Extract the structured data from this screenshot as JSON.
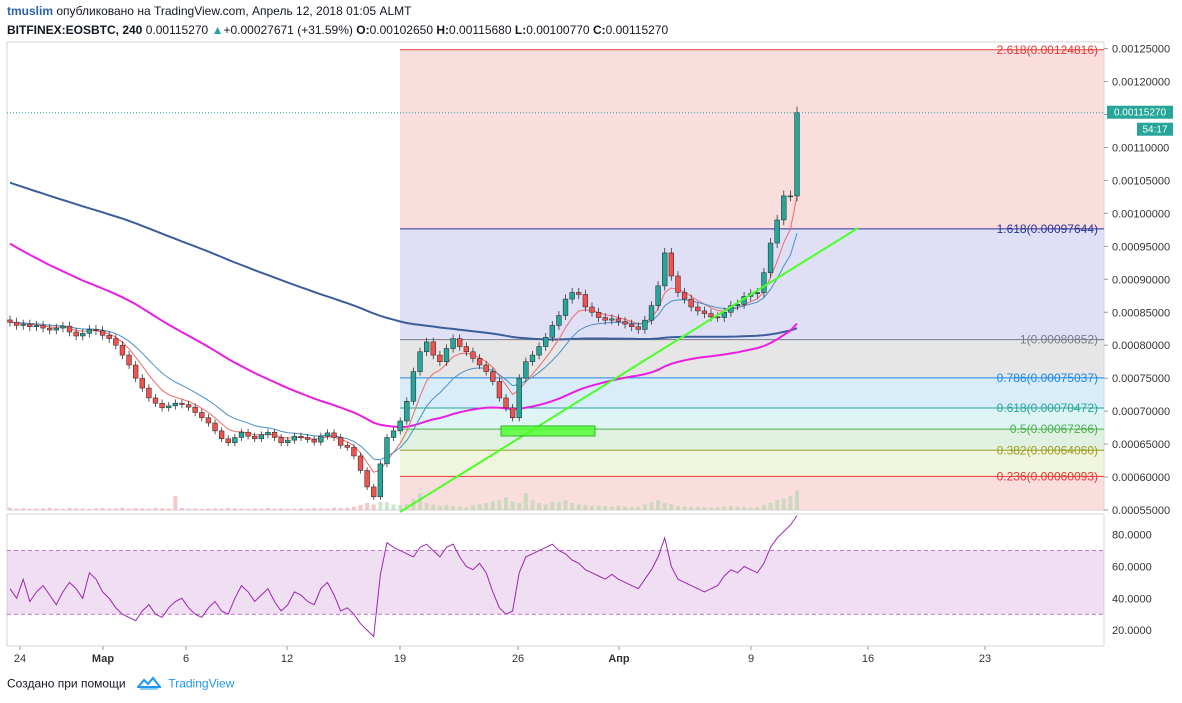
{
  "header": {
    "author": "tmuslim",
    "published": "опубликовано на TradingView.com, Апрель 12, 2018 01:05 ALMT",
    "symbol": "BITFINEX:EOSBTC, 240",
    "last": "0.00115270",
    "change": "+0.00027671 (+31.59%)",
    "o_label": "O:",
    "o_value": "0.00102650",
    "h_label": "H:",
    "h_value": "0.00115680",
    "l_label": "L:",
    "l_value": "0.00100770",
    "c_label": "C:",
    "c_value": "0.00115270"
  },
  "footer": {
    "created_with": "Создано при помощи",
    "brand": "TradingView"
  },
  "colors": {
    "up": "#26a69a",
    "down": "#ef5350",
    "ma200": "#3b5e9b",
    "ma_magenta": "#e91ee3",
    "trend": "#4cff29",
    "rsi": "#9c27b0"
  },
  "chart_data": {
    "type": "candlestick",
    "price_axis": {
      "ticks": [
        "0.00125000",
        "0.00120000",
        "0.00115000",
        "0.00110000",
        "0.00105000",
        "0.00100000",
        "0.00095000",
        "0.00090000",
        "0.00085000",
        "0.00080000",
        "0.00075000",
        "0.00070000",
        "0.00065000",
        "0.00060000",
        "0.00055000"
      ],
      "range": [
        0.00055,
        0.00126
      ],
      "last_price_label": "0.00115270",
      "countdown_label": "54:17"
    },
    "time_axis": {
      "labels": [
        "24",
        "Мар",
        "6",
        "12",
        "19",
        "26",
        "Апр",
        "9",
        "16",
        "23"
      ]
    },
    "fibonacci": [
      {
        "label": "2.618(0.00124816)",
        "value": 0.00124816,
        "color": "#e53935"
      },
      {
        "label": "1.618(0.00097644)",
        "value": 0.00097644,
        "color": "#283593"
      },
      {
        "label": "1(0.00080852)",
        "value": 0.00080852,
        "color": "#787b86"
      },
      {
        "label": "0.786(0.00075037)",
        "value": 0.00075037,
        "color": "#1e88e5"
      },
      {
        "label": "0.618(0.00070472)",
        "value": 0.00070472,
        "color": "#26a69a"
      },
      {
        "label": "0.5(0.00067266)",
        "value": 0.00067266,
        "color": "#4caf50"
      },
      {
        "label": "0.382(0.00064060)",
        "value": 0.0006406,
        "color": "#9e9d24"
      },
      {
        "label": "0.236(0.00060093)",
        "value": 0.00060093,
        "color": "#e53935"
      }
    ],
    "close": [
      0.000835,
      0.00083,
      0.000832,
      0.000828,
      0.00083,
      0.000826,
      0.000823,
      0.000826,
      0.000829,
      0.00082,
      0.000814,
      0.000818,
      0.000824,
      0.000822,
      0.000815,
      0.00081,
      0.0008,
      0.000785,
      0.00077,
      0.00075,
      0.000735,
      0.00072,
      0.000712,
      0.000705,
      0.000708,
      0.000712,
      0.00071,
      0.000706,
      0.000698,
      0.00069,
      0.000682,
      0.00067,
      0.000658,
      0.000652,
      0.00066,
      0.000668,
      0.000662,
      0.000658,
      0.000664,
      0.000668,
      0.00066,
      0.000652,
      0.000656,
      0.000662,
      0.00066,
      0.000657,
      0.000653,
      0.000662,
      0.000667,
      0.00066,
      0.000648,
      0.000645,
      0.000632,
      0.00061,
      0.000585,
      0.00057,
      0.00062,
      0.00066,
      0.00067,
      0.000685,
      0.000715,
      0.00076,
      0.00079,
      0.000805,
      0.000785,
      0.000775,
      0.000795,
      0.00081,
      0.000798,
      0.00079,
      0.00078,
      0.00077,
      0.00076,
      0.000745,
      0.00072,
      0.000705,
      0.00069,
      0.00075,
      0.000775,
      0.000785,
      0.000798,
      0.000812,
      0.00083,
      0.000845,
      0.00087,
      0.00088,
      0.000877,
      0.000858,
      0.00085,
      0.000842,
      0.000838,
      0.00084,
      0.000836,
      0.000832,
      0.000828,
      0.000824,
      0.000838,
      0.00086,
      0.00089,
      0.00094,
      0.000905,
      0.00088,
      0.00087,
      0.000858,
      0.000852,
      0.000848,
      0.000843,
      0.000842,
      0.00085,
      0.00086,
      0.000862,
      0.000874,
      0.000878,
      0.00088,
      0.00091,
      0.000955,
      0.00099,
      0.0010265,
      0.0010265,
      0.0011527
    ],
    "volume_rel": [
      0.08,
      0.05,
      0.06,
      0.04,
      0.05,
      0.06,
      0.08,
      0.05,
      0.04,
      0.07,
      0.06,
      0.05,
      0.04,
      0.06,
      0.07,
      0.05,
      0.06,
      0.08,
      0.05,
      0.07,
      0.06,
      0.05,
      0.08,
      0.06,
      0.05,
      0.5,
      0.07,
      0.05,
      0.06,
      0.04,
      0.05,
      0.06,
      0.05,
      0.07,
      0.06,
      0.05,
      0.04,
      0.06,
      0.05,
      0.07,
      0.05,
      0.06,
      0.04,
      0.05,
      0.06,
      0.05,
      0.07,
      0.06,
      0.05,
      0.08,
      0.07,
      0.09,
      0.12,
      0.18,
      0.25,
      0.2,
      0.3,
      0.28,
      0.2,
      0.18,
      0.22,
      0.4,
      0.6,
      0.25,
      0.2,
      0.15,
      0.18,
      0.14,
      0.12,
      0.1,
      0.16,
      0.2,
      0.25,
      0.3,
      0.35,
      0.45,
      0.3,
      0.25,
      0.6,
      0.35,
      0.25,
      0.2,
      0.3,
      0.28,
      0.35,
      0.25,
      0.2,
      0.18,
      0.15,
      0.16,
      0.14,
      0.12,
      0.15,
      0.12,
      0.1,
      0.12,
      0.2,
      0.28,
      0.35,
      0.25,
      0.2,
      0.15,
      0.12,
      0.1,
      0.12,
      0.1,
      0.08,
      0.09,
      0.12,
      0.15,
      0.12,
      0.1,
      0.08,
      0.1,
      0.18,
      0.25,
      0.35,
      0.4,
      0.5,
      0.7
    ],
    "rsi": {
      "ticks": [
        "80.0000",
        "60.0000",
        "40.0000",
        "20.0000"
      ],
      "range": [
        10,
        93
      ],
      "bands": [
        30,
        70
      ],
      "values": [
        46,
        40,
        52,
        38,
        44,
        48,
        42,
        36,
        44,
        50,
        46,
        40,
        56,
        52,
        44,
        40,
        34,
        30,
        28,
        26,
        32,
        36,
        30,
        28,
        34,
        38,
        40,
        34,
        30,
        28,
        34,
        38,
        32,
        30,
        40,
        48,
        44,
        38,
        42,
        46,
        38,
        32,
        36,
        44,
        42,
        38,
        36,
        46,
        50,
        42,
        32,
        34,
        30,
        24,
        20,
        16,
        55,
        75,
        72,
        70,
        68,
        66,
        72,
        74,
        70,
        66,
        72,
        74,
        66,
        60,
        58,
        62,
        56,
        44,
        34,
        30,
        32,
        56,
        66,
        68,
        70,
        72,
        74,
        70,
        68,
        64,
        62,
        58,
        56,
        54,
        52,
        55,
        52,
        50,
        48,
        46,
        52,
        58,
        66,
        78,
        60,
        52,
        50,
        48,
        46,
        44,
        46,
        48,
        54,
        58,
        56,
        60,
        58,
        56,
        62,
        72,
        78,
        82,
        86,
        92
      ]
    }
  }
}
